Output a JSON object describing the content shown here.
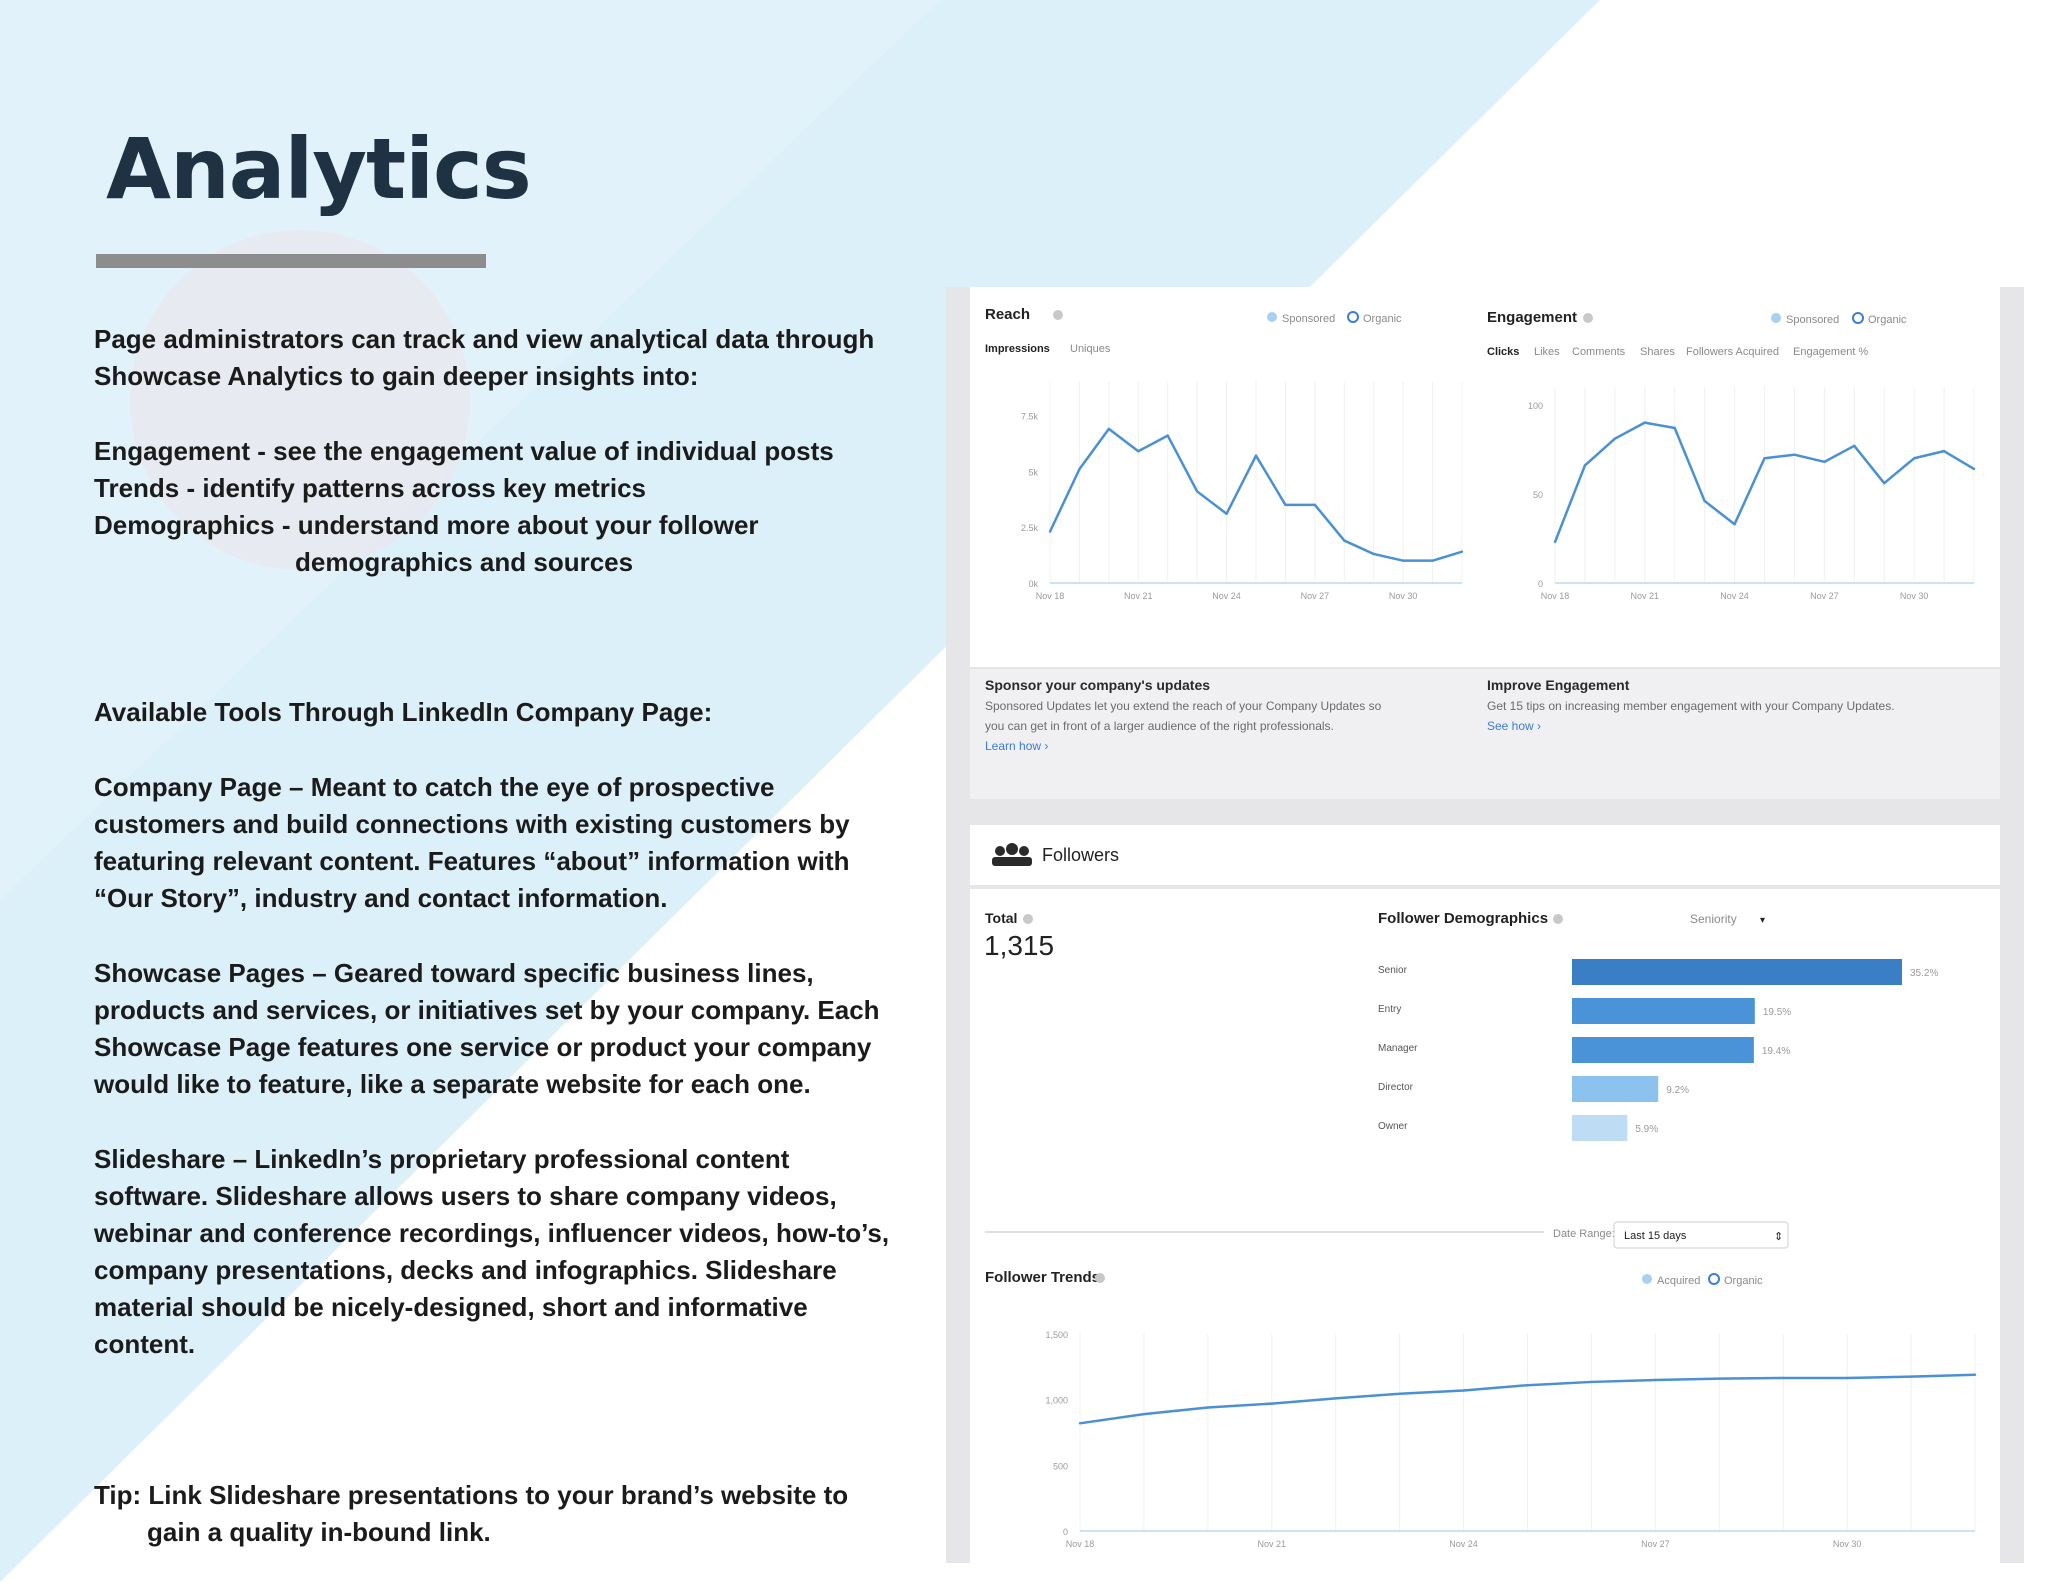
{
  "page": {
    "title": "Analytics",
    "intro": "Page administrators can track and view analytical data through Showcase Analytics to gain deeper insights into:",
    "bullets": [
      "Engagement - see the engagement value of individual posts",
      "Trends - identify patterns across key metrics",
      "Demographics - understand more about your follower"
    ],
    "bullets_cont": "demographics and sources",
    "tools_heading": "Available Tools Through LinkedIn Company Page:",
    "company_page": "Company Page – Meant to catch the eye of prospective customers and build connections with existing customers by featuring relevant content.  Features “about” information with “Our Story”, industry and contact information.",
    "showcase_pages": "Showcase Pages – Geared toward specific business lines, products and services, or initiatives set by your company.  Each Showcase Page features one service or product your company would like to feature, like a separate website for each one.",
    "slideshare": "Slideshare – LinkedIn’s proprietary professional content software.  Slideshare allows users to share company videos, webinar and conference recordings, influencer videos, how-to’s, company presentations, decks and infographics.  Slideshare material should be nicely-designed, short and informative content.",
    "tip_line1": "Tip: Link Slideshare presentations to your brand’s website to",
    "tip_line2": "gain a quality in-bound link."
  },
  "colors": {
    "bg_light_blue": "#dcf0fa",
    "bg_tri_blue": "#c9e8f7",
    "title": "#1f3244",
    "rule": "#8d8d8d",
    "chart_line": "#4a90d4"
  },
  "reach": {
    "title": "Reach",
    "legend": [
      "Sponsored",
      "Organic"
    ],
    "tabs": [
      "Impressions",
      "Uniques"
    ]
  },
  "engagement": {
    "title": "Engagement",
    "legend": [
      "Sponsored",
      "Organic"
    ],
    "tabs": [
      "Clicks",
      "Likes",
      "Comments",
      "Shares",
      "Followers Acquired",
      "Engagement %"
    ]
  },
  "sponsor": {
    "title": "Sponsor your company's updates",
    "body1": "Sponsored Updates let you extend the reach of your Company Updates so",
    "body2": "you can get in front of a larger audience of the right professionals.",
    "link": "Learn how ›"
  },
  "improve": {
    "title": "Improve Engagement",
    "body": "Get 15 tips on increasing member engagement with your Company Updates.",
    "link": "See how ›"
  },
  "followers": {
    "title": "Followers",
    "total_label": "Total",
    "total_value": "1,315",
    "demographics_title": "Follower Demographics",
    "select": "Seniority",
    "date_range_label": "Date Range:",
    "date_range_value": "Last 15 days",
    "trends_title": "Follower Trends",
    "trends_legend": [
      "Acquired",
      "Organic"
    ]
  },
  "chart_data": [
    {
      "type": "line",
      "title": "Reach",
      "x": [
        "Nov 18",
        "Nov 19",
        "Nov 20",
        "Nov 21",
        "Nov 22",
        "Nov 23",
        "Nov 24",
        "Nov 25",
        "Nov 26",
        "Nov 27",
        "Nov 28",
        "Nov 29",
        "Nov 30",
        "Dec 1",
        "Dec 2"
      ],
      "xticks": [
        "Nov 18",
        "Nov 21",
        "Nov 24",
        "Nov 27",
        "Nov 30"
      ],
      "yticks": [
        "0k",
        "2.5k",
        "5k",
        "7.5k"
      ],
      "ylim": [
        0,
        9000
      ],
      "series": [
        {
          "values": [
            2300,
            5100,
            6900,
            5900,
            6600,
            4100,
            3100,
            5700,
            3500,
            3500,
            1900,
            1300,
            1000,
            1000,
            1400
          ]
        }
      ]
    },
    {
      "type": "line",
      "title": "Engagement",
      "x": [
        "Nov 18",
        "Nov 19",
        "Nov 20",
        "Nov 21",
        "Nov 22",
        "Nov 23",
        "Nov 24",
        "Nov 25",
        "Nov 26",
        "Nov 27",
        "Nov 28",
        "Nov 29",
        "Nov 30",
        "Dec 1",
        "Dec 2"
      ],
      "xticks": [
        "Nov 18",
        "Nov 21",
        "Nov 24",
        "Nov 27",
        "Nov 30"
      ],
      "yticks": [
        "0",
        "50",
        "100"
      ],
      "ylim": [
        0,
        110
      ],
      "series": [
        {
          "values": [
            23,
            66,
            81,
            90,
            87,
            46,
            33,
            70,
            72,
            68,
            77,
            56,
            70,
            74,
            64
          ]
        }
      ]
    },
    {
      "type": "bar",
      "title": "Follower Demographics",
      "categories": [
        "Senior",
        "Entry",
        "Manager",
        "Director",
        "Owner"
      ],
      "values": [
        35.2,
        19.5,
        19.4,
        9.2,
        5.9
      ],
      "labels": [
        "35.2%",
        "19.5%",
        "19.4%",
        "9.2%",
        "5.9%"
      ],
      "bar_colors": [
        "#3a7fc6",
        "#4a93d8",
        "#4a93d8",
        "#8cc3ee",
        "#bfdcf5"
      ]
    },
    {
      "type": "line",
      "title": "Follower Trends",
      "x": [
        "Nov 18",
        "Nov 19",
        "Nov 20",
        "Nov 21",
        "Nov 22",
        "Nov 23",
        "Nov 24",
        "Nov 25",
        "Nov 26",
        "Nov 27",
        "Nov 28",
        "Nov 29",
        "Nov 30",
        "Dec 1",
        "Dec 2"
      ],
      "xticks": [
        "Nov 18",
        "Nov 21",
        "Nov 24",
        "Nov 27",
        "Nov 30"
      ],
      "yticks": [
        "0",
        "500",
        "1,000",
        "1,500"
      ],
      "ylim": [
        0,
        1500
      ],
      "series": [
        {
          "values": [
            820,
            890,
            940,
            970,
            1010,
            1045,
            1070,
            1110,
            1135,
            1150,
            1160,
            1165,
            1165,
            1175,
            1190
          ]
        }
      ]
    }
  ]
}
